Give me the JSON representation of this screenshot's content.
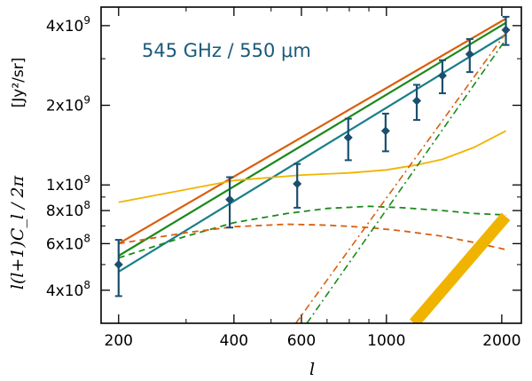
{
  "chart_data": {
    "type": "line",
    "title": "",
    "annotation": "545 GHz / 550 μm",
    "xlabel": "l",
    "ylabel": "l(l+1)C_l / 2π",
    "yunit": "[Jy²/sr]",
    "xscale": "log",
    "yscale": "log",
    "xlim": [
      180,
      2250
    ],
    "ylim": [
      300000000,
      4700000000
    ],
    "xticks": [
      200,
      400,
      600,
      1000,
      2000
    ],
    "xtick_labels": [
      "200",
      "400",
      "600",
      "1000",
      "2000"
    ],
    "yticks": [
      400000000,
      600000000,
      800000000,
      1000000000,
      2000000000,
      4000000000
    ],
    "ytick_labels": [
      {
        "mant": "4x10",
        "exp": "8"
      },
      {
        "mant": "6x10",
        "exp": "8"
      },
      {
        "mant": "8x10",
        "exp": "8"
      },
      {
        "mant": "1x10",
        "exp": "9"
      },
      {
        "mant": "2x10",
        "exp": "9"
      },
      {
        "mant": "4x10",
        "exp": "9"
      }
    ],
    "grid": false,
    "legend": "none",
    "data_points": [
      {
        "x": 200,
        "y": 500000000,
        "ylo": 380000000,
        "yhi": 620000000
      },
      {
        "x": 390,
        "y": 880000000,
        "ylo": 690000000,
        "yhi": 1070000000
      },
      {
        "x": 585,
        "y": 1010000000,
        "ylo": 820000000,
        "yhi": 1200000000
      },
      {
        "x": 795,
        "y": 1510000000,
        "ylo": 1240000000,
        "yhi": 1780000000
      },
      {
        "x": 995,
        "y": 1600000000,
        "ylo": 1340000000,
        "yhi": 1860000000
      },
      {
        "x": 1200,
        "y": 2080000000,
        "ylo": 1760000000,
        "yhi": 2390000000
      },
      {
        "x": 1400,
        "y": 2590000000,
        "ylo": 2220000000,
        "yhi": 2960000000
      },
      {
        "x": 1650,
        "y": 3120000000,
        "ylo": 2670000000,
        "yhi": 3560000000
      },
      {
        "x": 2050,
        "y": 3850000000,
        "ylo": 3380000000,
        "yhi": 4320000000
      }
    ],
    "series": [
      {
        "style": "solid",
        "color": "#d95f0e",
        "width": 2.2,
        "x": [
          200,
          2050
        ],
        "y": [
          600000000,
          4250000000
        ]
      },
      {
        "style": "solid",
        "color": "#1a8a1a",
        "width": 2.2,
        "x": [
          200,
          2050
        ],
        "y": [
          540000000,
          4100000000
        ]
      },
      {
        "style": "solid",
        "color": "#1a7f8a",
        "width": 2.2,
        "x": [
          200,
          2050
        ],
        "y": [
          470000000,
          3700000000
        ]
      },
      {
        "style": "solid",
        "color": "#f0b400",
        "width": 1.8,
        "x": [
          200,
          400,
          600,
          800,
          1000,
          1200,
          1400,
          1700,
          2050
        ],
        "y": [
          860000000,
          1040000000,
          1090000000,
          1110000000,
          1140000000,
          1190000000,
          1250000000,
          1390000000,
          1600000000
        ]
      },
      {
        "style": "dashed",
        "color": "#1a8a1a",
        "width": 1.8,
        "x": [
          200,
          300,
          400,
          550,
          700,
          900,
          1100,
          1400,
          1700,
          2050
        ],
        "y": [
          530000000,
          640000000,
          720000000,
          780000000,
          815000000,
          830000000,
          820000000,
          800000000,
          780000000,
          770000000
        ]
      },
      {
        "style": "dashed",
        "color": "#d95f0e",
        "width": 1.8,
        "x": [
          200,
          300,
          400,
          550,
          700,
          900,
          1100,
          1400,
          1700,
          2050
        ],
        "y": [
          600000000,
          660000000,
          695000000,
          710000000,
          705000000,
          690000000,
          670000000,
          640000000,
          605000000,
          570000000
        ]
      },
      {
        "style": "dashdot",
        "color": "#1a8a1a",
        "width": 1.6,
        "x": [
          620,
          2050
        ],
        "y": [
          300000000,
          3550000000
        ]
      },
      {
        "style": "dashdot",
        "color": "#d95f0e",
        "width": 1.6,
        "x": [
          580,
          2050
        ],
        "y": [
          300000000,
          3750000000
        ]
      },
      {
        "style": "band",
        "color": "#f0b400",
        "width": 13,
        "x": [
          1180,
          2050
        ],
        "y": [
          300000000,
          760000000
        ]
      }
    ]
  }
}
